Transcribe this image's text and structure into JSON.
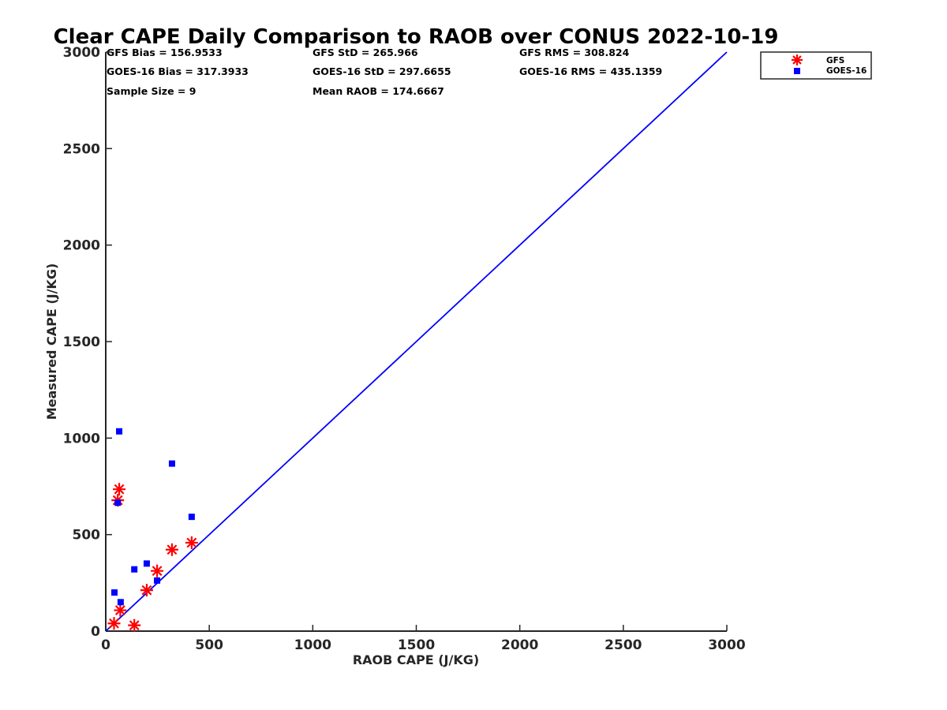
{
  "chart_data": {
    "type": "scatter",
    "title": "Clear CAPE Daily Comparison to RAOB over CONUS 2022-10-19",
    "xlabel": "RAOB CAPE (J/KG)",
    "ylabel": "Measured CAPE (J/KG)",
    "xlim": [
      0,
      3000
    ],
    "ylim": [
      0,
      3000
    ],
    "xticks": [
      0,
      500,
      1000,
      1500,
      2000,
      2500,
      3000
    ],
    "yticks": [
      0,
      500,
      1000,
      1500,
      2000,
      2500,
      3000
    ],
    "grid": false,
    "legend_position": "top-right outside",
    "stats": [
      "GFS Bias = 156.9533",
      "GFS StD = 265.966",
      "GFS RMS = 308.824",
      "GOES-16 Bias = 317.3933",
      "GOES-16 StD = 297.6655",
      "GOES-16 RMS = 435.1359",
      "Sample Size = 9",
      "Mean RAOB = 174.6667"
    ],
    "series": [
      {
        "name": "GFS",
        "marker": "asterisk",
        "color": "#ff0000",
        "points": [
          [
            40,
            40
          ],
          [
            70,
            108
          ],
          [
            138,
            30
          ],
          [
            198,
            212
          ],
          [
            248,
            312
          ],
          [
            320,
            422
          ],
          [
            415,
            458
          ],
          [
            58,
            678
          ],
          [
            65,
            735
          ]
        ]
      },
      {
        "name": "GOES-16",
        "marker": "square",
        "color": "#0000ff",
        "points": [
          [
            42,
            200
          ],
          [
            72,
            150
          ],
          [
            138,
            320
          ],
          [
            198,
            350
          ],
          [
            248,
            262
          ],
          [
            320,
            868
          ],
          [
            415,
            592
          ],
          [
            58,
            665
          ],
          [
            65,
            1035
          ]
        ]
      }
    ],
    "reference_line": {
      "color": "#0000ff",
      "points": [
        [
          0,
          0
        ],
        [
          3000,
          3000
        ]
      ]
    }
  }
}
